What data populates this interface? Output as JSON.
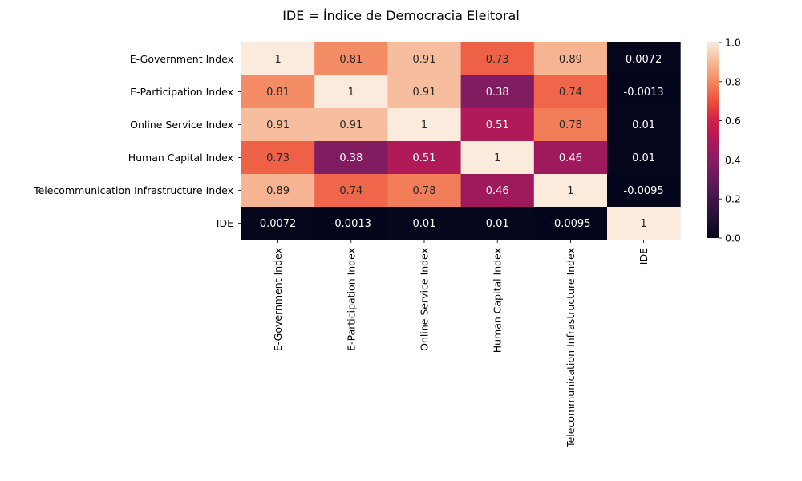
{
  "chart_data": {
    "type": "heatmap",
    "title": "IDE = Índice de Democracia Eleitoral",
    "row_labels": [
      "E-Government Index",
      "E-Participation Index",
      "Online Service Index",
      "Human Capital Index",
      "Telecommunication Infrastructure Index",
      "IDE"
    ],
    "col_labels": [
      "E-Government Index",
      "E-Participation Index",
      "Online Service Index",
      "Human Capital Index",
      "Telecommunication Infrastructure Index",
      "IDE"
    ],
    "values": [
      [
        1,
        0.81,
        0.91,
        0.73,
        0.89,
        0.0072
      ],
      [
        0.81,
        1,
        0.91,
        0.38,
        0.74,
        -0.0013
      ],
      [
        0.91,
        0.91,
        1,
        0.51,
        0.78,
        0.01
      ],
      [
        0.73,
        0.38,
        0.51,
        1,
        0.46,
        0.01
      ],
      [
        0.89,
        0.74,
        0.78,
        0.46,
        1,
        -0.0095
      ],
      [
        0.0072,
        -0.0013,
        0.01,
        0.01,
        -0.0095,
        1
      ]
    ],
    "annotations": [
      [
        "1",
        "0.81",
        "0.91",
        "0.73",
        "0.89",
        "0.0072"
      ],
      [
        "0.81",
        "1",
        "0.91",
        "0.38",
        "0.74",
        "-0.0013"
      ],
      [
        "0.91",
        "0.91",
        "1",
        "0.51",
        "0.78",
        "0.01"
      ],
      [
        "0.73",
        "0.38",
        "0.51",
        "1",
        "0.46",
        "0.01"
      ],
      [
        "0.89",
        "0.74",
        "0.78",
        "0.46",
        "1",
        "-0.0095"
      ],
      [
        "0.0072",
        "-0.0013",
        "0.01",
        "0.01",
        "-0.0095",
        "1"
      ]
    ],
    "colormap": "rocket",
    "vmin": 0,
    "vmax": 1,
    "colorbar_ticks": [
      "0.0",
      "0.2",
      "0.4",
      "0.6",
      "0.8",
      "1.0"
    ]
  }
}
